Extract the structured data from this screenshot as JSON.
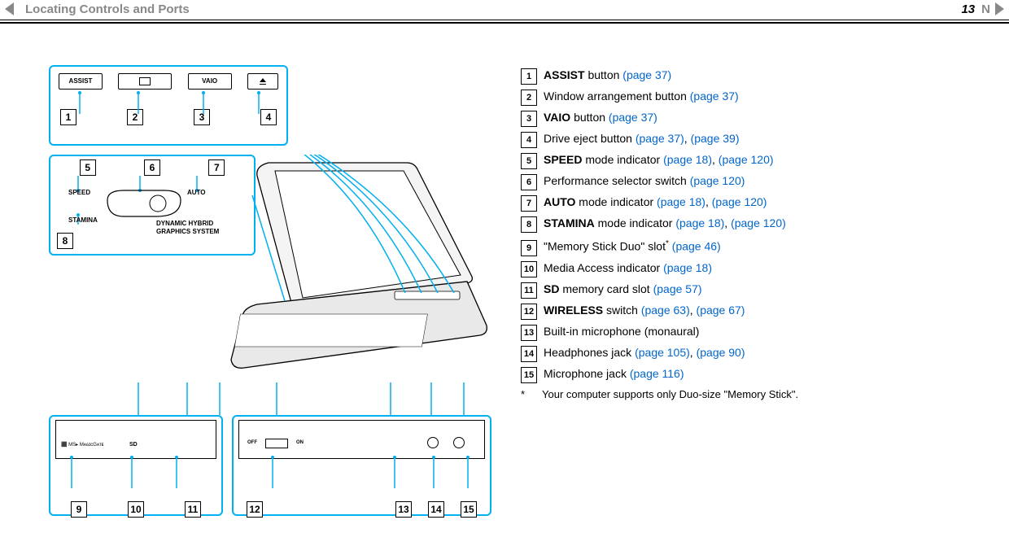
{
  "header": {
    "section_title": "Locating Controls and Ports",
    "page_number": "13",
    "letter": "N"
  },
  "colors": {
    "callout_border": "#00b0f0",
    "link": "#0066cc",
    "header_grey": "#888888",
    "rule": "#000000"
  },
  "top_buttons": {
    "labels": [
      "ASSIST",
      "",
      "VAIO",
      ""
    ],
    "numbers": [
      "1",
      "2",
      "3",
      "4"
    ]
  },
  "perf_switch": {
    "numbers_top": [
      "5",
      "6",
      "7"
    ],
    "number_bottom": "8",
    "labels": {
      "speed": "SPEED",
      "auto": "AUTO",
      "stamina": "STAMINA",
      "caption_line1": "DYNAMIC HYBRID",
      "caption_line2": "GRAPHICS SYSTEM"
    }
  },
  "bottom_left": {
    "numbers": [
      "9",
      "10",
      "11"
    ],
    "edge_labels": [
      "SD"
    ]
  },
  "bottom_right": {
    "numbers": [
      "12",
      "13",
      "14",
      "15"
    ],
    "edge_labels": [
      "OFF",
      "ON"
    ]
  },
  "list": [
    {
      "n": "1",
      "bold": "ASSIST",
      "rest": " button ",
      "links": [
        {
          "t": "(page 37)"
        }
      ]
    },
    {
      "n": "2",
      "bold": "",
      "rest": "Window arrangement button ",
      "links": [
        {
          "t": "(page 37)"
        }
      ]
    },
    {
      "n": "3",
      "bold": "VAIO",
      "rest": " button ",
      "links": [
        {
          "t": "(page 37)"
        }
      ]
    },
    {
      "n": "4",
      "bold": "",
      "rest": "Drive eject button ",
      "links": [
        {
          "t": "(page 37)"
        },
        {
          "sep": ", "
        },
        {
          "t": "(page 39)"
        }
      ]
    },
    {
      "n": "5",
      "bold": "SPEED",
      "rest": " mode indicator ",
      "links": [
        {
          "t": "(page 18)"
        },
        {
          "sep": ", "
        },
        {
          "t": "(page 120)"
        }
      ]
    },
    {
      "n": "6",
      "bold": "",
      "rest": "Performance selector switch ",
      "links": [
        {
          "t": "(page 120)"
        }
      ]
    },
    {
      "n": "7",
      "bold": "AUTO",
      "rest": " mode indicator ",
      "links": [
        {
          "t": "(page 18)"
        },
        {
          "sep": ", "
        },
        {
          "t": "(page 120)"
        }
      ]
    },
    {
      "n": "8",
      "bold": "STAMINA",
      "rest": " mode indicator ",
      "links": [
        {
          "t": "(page 18)"
        },
        {
          "sep": ", "
        },
        {
          "t": "(page 120)"
        }
      ]
    },
    {
      "n": "9",
      "bold": "",
      "rest": "\"Memory Stick Duo\" slot",
      "sup": "*",
      "links": [
        {
          "sep": " "
        },
        {
          "t": "(page 46)"
        }
      ]
    },
    {
      "n": "10",
      "bold": "",
      "rest": "Media Access indicator ",
      "links": [
        {
          "t": "(page 18)"
        }
      ]
    },
    {
      "n": "11",
      "bold": "SD",
      "rest": " memory card slot ",
      "links": [
        {
          "t": "(page 57)"
        }
      ]
    },
    {
      "n": "12",
      "bold": "WIRELESS",
      "rest": " switch ",
      "links": [
        {
          "t": "(page 63)"
        },
        {
          "sep": ", "
        },
        {
          "t": "(page 67)"
        }
      ]
    },
    {
      "n": "13",
      "bold": "",
      "rest": "Built-in microphone (monaural)",
      "links": []
    },
    {
      "n": "14",
      "bold": "",
      "rest": "Headphones jack ",
      "links": [
        {
          "t": "(page 105)"
        },
        {
          "sep": ", "
        },
        {
          "t": "(page 90)"
        }
      ]
    },
    {
      "n": "15",
      "bold": "",
      "rest": "Microphone jack ",
      "links": [
        {
          "t": "(page 116)"
        }
      ]
    }
  ],
  "footnote": {
    "mark": "*",
    "text": "Your computer supports only Duo-size \"Memory Stick\"."
  }
}
